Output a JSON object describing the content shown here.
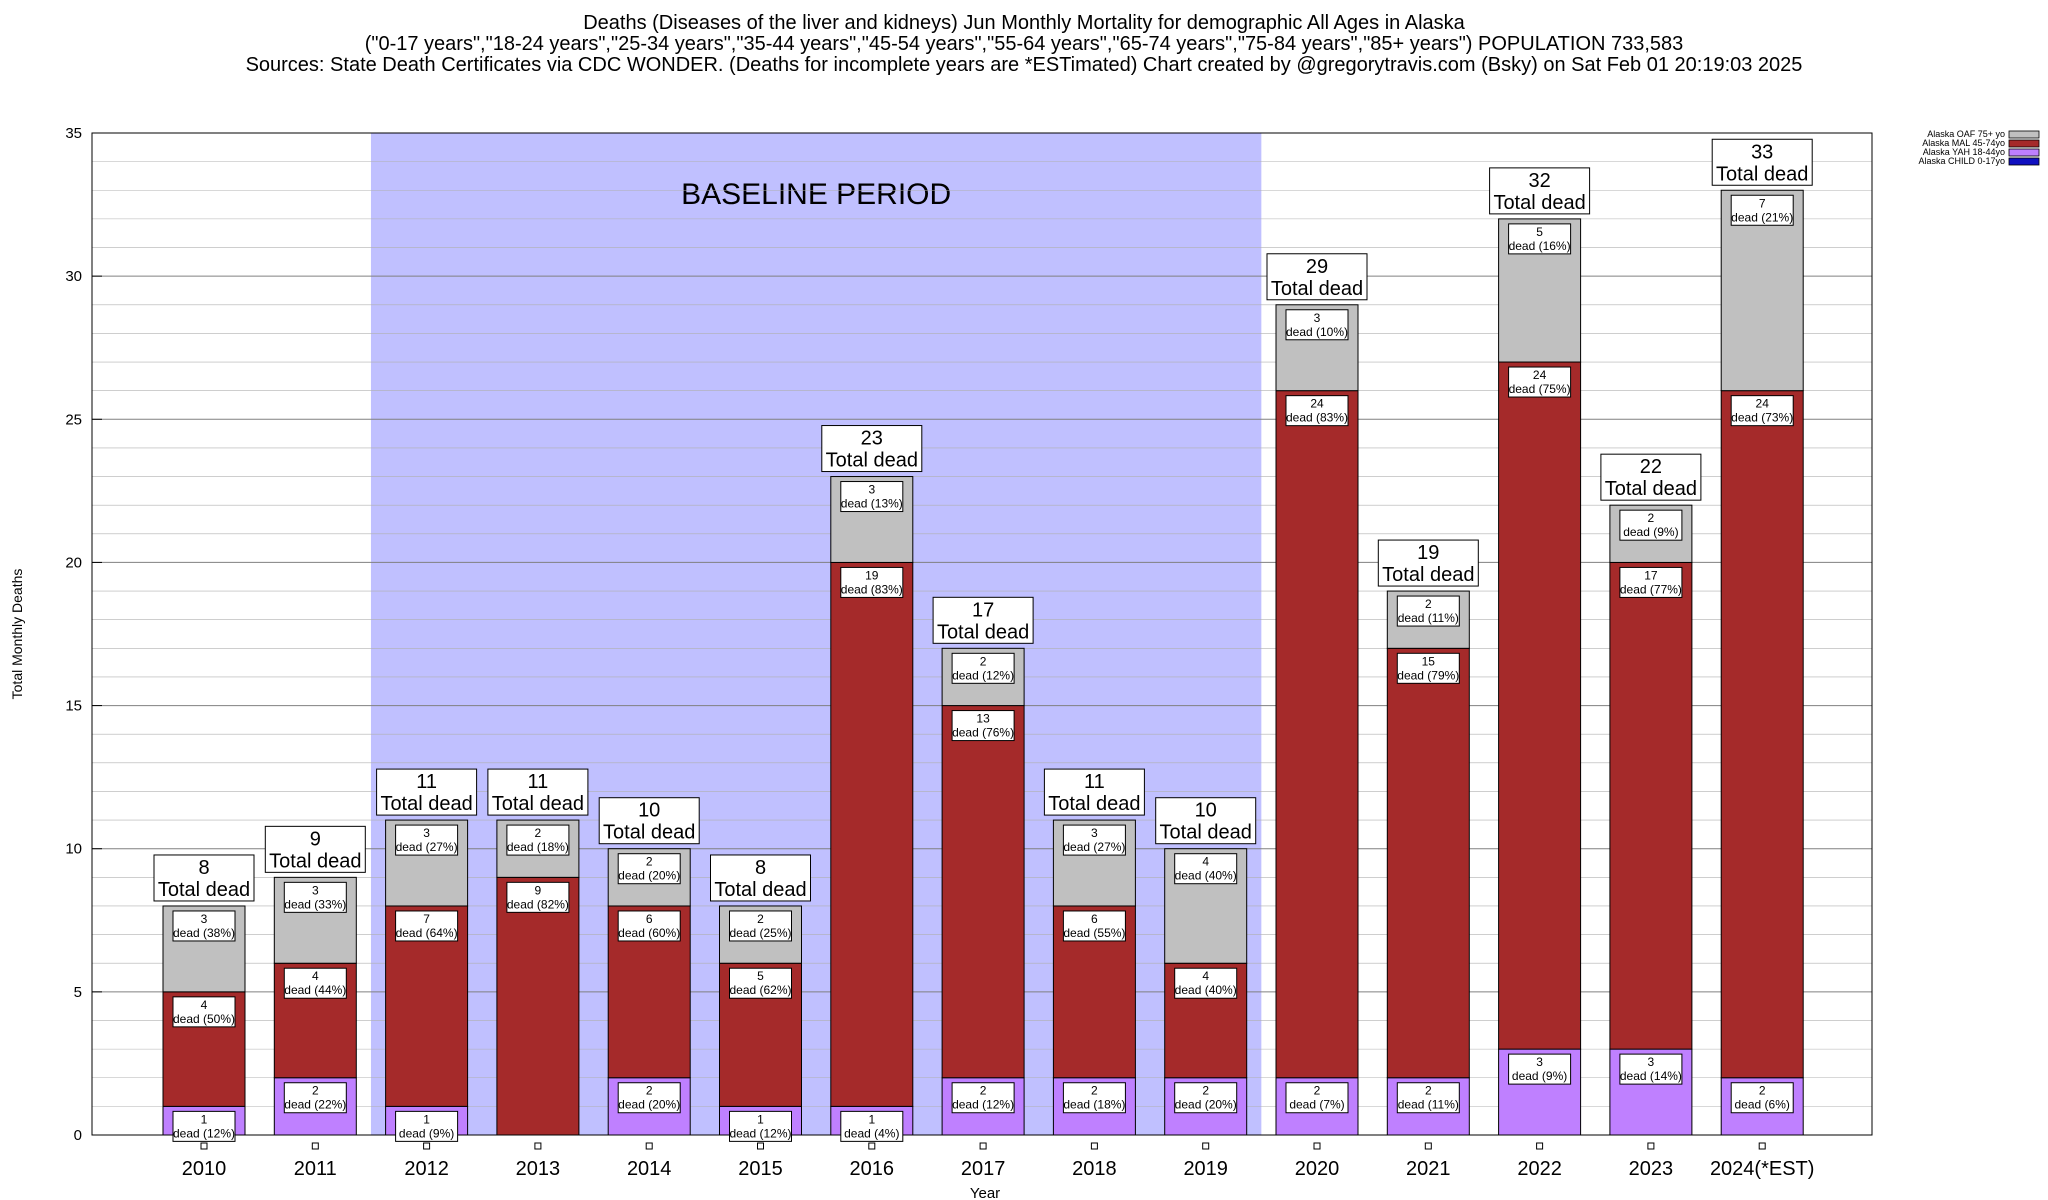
{
  "header": {
    "line1": "Deaths (Diseases of the liver and kidneys) Jun Monthly Mortality for demographic All Ages in Alaska",
    "line2": "(\"0-17 years\",\"18-24 years\",\"25-34 years\",\"35-44 years\",\"45-54 years\",\"55-64 years\",\"65-74 years\",\"75-84 years\",\"85+ years\") POPULATION 733,583",
    "line3": "Sources: State Death Certificates via CDC WONDER. (Deaths for incomplete years are *ESTimated)               Chart created by @gregorytravis.com (Bsky) on Sat Feb 01 20:19:03 2025"
  },
  "chart_data": {
    "type": "bar",
    "stacked": true,
    "title": "Deaths (Diseases of the liver and kidneys) Jun Monthly Mortality for demographic All Ages in Alaska",
    "xlabel": "Year",
    "ylabel": "Total Monthly Deaths",
    "ylim": [
      0,
      35
    ],
    "yticks": [
      0,
      5,
      10,
      15,
      20,
      25,
      30,
      35
    ],
    "grid": true,
    "legend_position": "top-right",
    "baseline_label": "BASELINE PERIOD",
    "baseline_range": [
      "2012",
      "2019"
    ],
    "total_label": "Total dead",
    "dead_word": "dead",
    "categories": [
      "2010",
      "2011",
      "2012",
      "2013",
      "2014",
      "2015",
      "2016",
      "2017",
      "2018",
      "2019",
      "2020",
      "2021",
      "2022",
      "2023",
      "2024(*EST)"
    ],
    "totals": [
      8,
      9,
      11,
      11,
      10,
      8,
      23,
      17,
      11,
      10,
      29,
      19,
      32,
      22,
      33
    ],
    "series": [
      {
        "name": "Alaska CHILD 0-17yo",
        "color": "#1010c0",
        "values": [
          0,
          0,
          0,
          0,
          0,
          0,
          0,
          0,
          0,
          0,
          0,
          0,
          0,
          0,
          0
        ],
        "pcts": [
          0,
          0,
          0,
          0,
          0,
          0,
          0,
          0,
          0,
          0,
          0,
          0,
          0,
          0,
          0
        ]
      },
      {
        "name": "Alaska YAH 18-44yo",
        "color": "#bf80ff",
        "values": [
          1,
          2,
          1,
          0,
          2,
          1,
          1,
          2,
          2,
          2,
          2,
          2,
          3,
          3,
          2
        ],
        "pcts": [
          12,
          22,
          9,
          0,
          20,
          12,
          4,
          12,
          18,
          20,
          7,
          11,
          9,
          14,
          6
        ]
      },
      {
        "name": "Alaska MAL 45-74yo",
        "color": "#a52a2a",
        "values": [
          4,
          4,
          7,
          9,
          6,
          5,
          19,
          13,
          6,
          4,
          24,
          15,
          24,
          17,
          24
        ],
        "pcts": [
          50,
          44,
          64,
          82,
          60,
          62,
          83,
          76,
          55,
          40,
          83,
          79,
          75,
          77,
          73
        ]
      },
      {
        "name": "Alaska OAF 75+ yo",
        "color": "#c0c0c0",
        "values": [
          3,
          3,
          3,
          2,
          2,
          2,
          3,
          2,
          3,
          4,
          3,
          2,
          5,
          2,
          7
        ],
        "pcts": [
          38,
          33,
          27,
          18,
          20,
          25,
          13,
          12,
          27,
          40,
          10,
          11,
          16,
          9,
          21
        ]
      }
    ],
    "legend_order": [
      "Alaska OAF 75+ yo",
      "Alaska MAL 45-74yo",
      "Alaska YAH 18-44yo",
      "Alaska CHILD 0-17yo"
    ],
    "colors": {
      "baseline_shade": "#c0c0ff",
      "grid": "#b0b0b0"
    }
  }
}
